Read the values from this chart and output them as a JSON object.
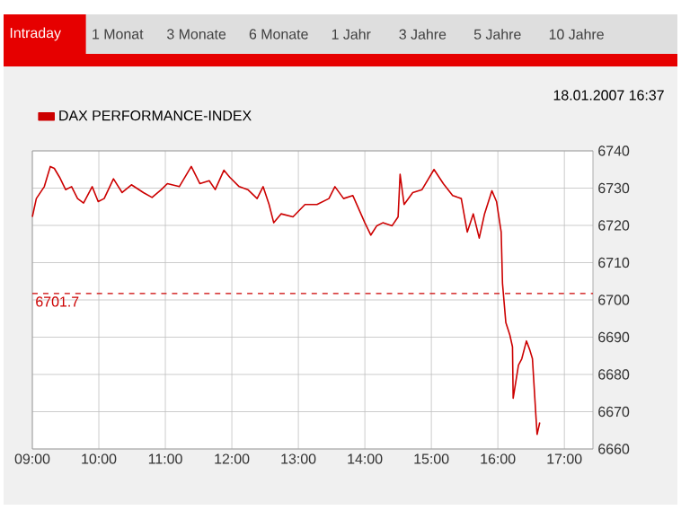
{
  "chart_data": {
    "type": "line",
    "annotations": [
      "Intraday",
      "1 Monat",
      "3 Monate",
      "6 Monate",
      "1 Jahr",
      "3 Jahre",
      "5 Jahre",
      "10 Jahre",
      "18.01.2007 16:37"
    ],
    "series": [
      {
        "name": "DAX PERFORMANCE-INDEX",
        "color": "#cc0000",
        "x": [
          9.0,
          9.06,
          9.18,
          9.27,
          9.33,
          9.41,
          9.5,
          9.59,
          9.68,
          9.77,
          9.9,
          9.99,
          10.08,
          10.22,
          10.35,
          10.49,
          10.67,
          10.8,
          10.94,
          11.03,
          11.21,
          11.39,
          11.52,
          11.66,
          11.75,
          11.88,
          11.97,
          12.11,
          12.24,
          12.38,
          12.47,
          12.56,
          12.63,
          12.74,
          12.92,
          13.1,
          13.28,
          13.46,
          13.55,
          13.68,
          13.82,
          14.0,
          14.09,
          14.18,
          14.27,
          14.41,
          14.5,
          14.53,
          14.59,
          14.72,
          14.86,
          15.04,
          15.18,
          15.32,
          15.45,
          15.54,
          15.63,
          15.72,
          15.8,
          15.91,
          15.98,
          16.05,
          16.07,
          16.12,
          16.18,
          16.22,
          16.23,
          16.31,
          16.36,
          16.43,
          16.48,
          16.52,
          16.57,
          16.59,
          16.63
        ],
        "values": [
          6722.3,
          6727.2,
          6730.4,
          6735.8,
          6735.3,
          6732.9,
          6729.6,
          6730.4,
          6727.2,
          6726.0,
          6730.4,
          6726.4,
          6727.2,
          6732.5,
          6728.8,
          6730.9,
          6728.8,
          6727.5,
          6729.6,
          6731.2,
          6730.4,
          6735.8,
          6731.2,
          6732.0,
          6729.6,
          6734.8,
          6732.9,
          6730.4,
          6729.6,
          6727.2,
          6730.4,
          6725.6,
          6720.7,
          6723.1,
          6722.3,
          6725.6,
          6725.6,
          6727.2,
          6730.4,
          6727.2,
          6728.0,
          6720.7,
          6717.4,
          6719.9,
          6720.7,
          6719.9,
          6722.3,
          6733.7,
          6725.6,
          6728.8,
          6729.6,
          6735.0,
          6731.2,
          6728.0,
          6727.2,
          6718.2,
          6723.1,
          6716.6,
          6723.1,
          6729.3,
          6726.4,
          6718.2,
          6704.4,
          6693.9,
          6690.6,
          6687.4,
          6673.6,
          6682.5,
          6684.2,
          6689.0,
          6686.6,
          6684.2,
          6669.5,
          6663.9,
          6667.1
        ]
      }
    ],
    "xlim": [
      9,
      17.43
    ],
    "xticks": [
      {
        "value": 9,
        "label": "09:00"
      },
      {
        "value": 10,
        "label": "10:00"
      },
      {
        "value": 11,
        "label": "11:00"
      },
      {
        "value": 12,
        "label": "12:00"
      },
      {
        "value": 13,
        "label": "13:00"
      },
      {
        "value": 14,
        "label": "14:00"
      },
      {
        "value": 15,
        "label": "15:00"
      },
      {
        "value": 16,
        "label": "16:00"
      },
      {
        "value": 17,
        "label": "17:00"
      }
    ],
    "ylim": [
      6660,
      6740
    ],
    "yticks": [
      6660,
      6670,
      6680,
      6690,
      6700,
      6710,
      6720,
      6730,
      6740
    ],
    "grid": true,
    "legend": "top left",
    "ref_lines": [
      {
        "axis": "y",
        "value": 6701.7,
        "label": "6701.7",
        "color": "#cc0000",
        "line_style": "dashed"
      }
    ]
  }
}
